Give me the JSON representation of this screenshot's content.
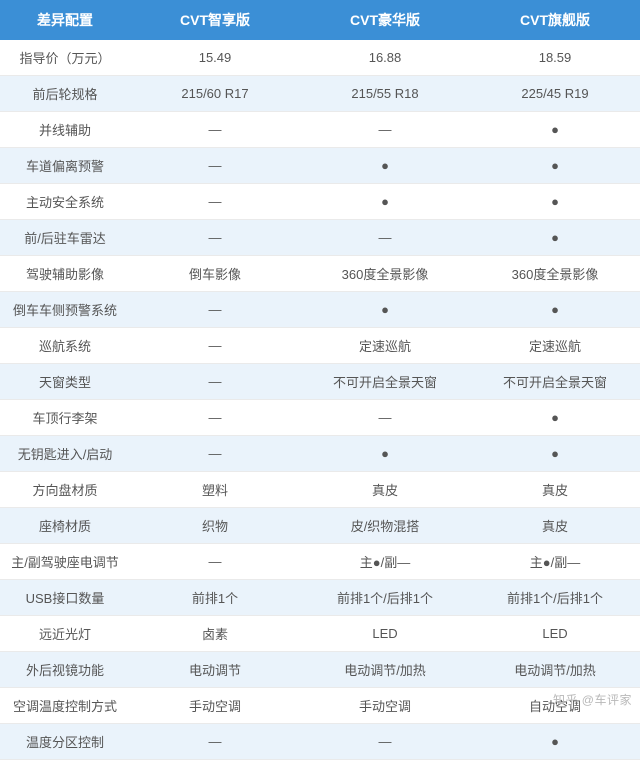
{
  "table": {
    "header_bg": "#3b8fd6",
    "header_text_color": "#ffffff",
    "row_alt_bg": "#eaf3fb",
    "row_bg": "#ffffff",
    "border_color": "#eaeaea",
    "text_color": "#555555",
    "font_size_header": 14,
    "font_size_cell": 13,
    "columns": [
      "差异配置",
      "CVT智享版",
      "CVT豪华版",
      "CVT旗舰版"
    ],
    "rows": [
      [
        "指导价（万元）",
        "15.49",
        "16.88",
        "18.59"
      ],
      [
        "前后轮规格",
        "215/60 R17",
        "215/55 R18",
        "225/45 R19"
      ],
      [
        "并线辅助",
        "—",
        "—",
        "●"
      ],
      [
        "车道偏离预警",
        "—",
        "●",
        "●"
      ],
      [
        "主动安全系统",
        "—",
        "●",
        "●"
      ],
      [
        "前/后驻车雷达",
        "—",
        "—",
        "●"
      ],
      [
        "驾驶辅助影像",
        "倒车影像",
        "360度全景影像",
        "360度全景影像"
      ],
      [
        "倒车车侧预警系统",
        "—",
        "●",
        "●"
      ],
      [
        "巡航系统",
        "—",
        "定速巡航",
        "定速巡航"
      ],
      [
        "天窗类型",
        "—",
        "不可开启全景天窗",
        "不可开启全景天窗"
      ],
      [
        "车顶行李架",
        "—",
        "—",
        "●"
      ],
      [
        "无钥匙进入/启动",
        "—",
        "●",
        "●"
      ],
      [
        "方向盘材质",
        "塑料",
        "真皮",
        "真皮"
      ],
      [
        "座椅材质",
        "织物",
        "皮/织物混搭",
        "真皮"
      ],
      [
        "主/副驾驶座电调节",
        "—",
        "主●/副—",
        "主●/副—"
      ],
      [
        "USB接口数量",
        "前排1个",
        "前排1个/后排1个",
        "前排1个/后排1个"
      ],
      [
        "远近光灯",
        "卤素",
        "LED",
        "LED"
      ],
      [
        "外后视镜功能",
        "电动调节",
        "电动调节/加热",
        "电动调节/加热"
      ],
      [
        "空调温度控制方式",
        "手动空调",
        "手动空调",
        "自动空调"
      ],
      [
        "温度分区控制",
        "—",
        "—",
        "●"
      ]
    ]
  },
  "watermark": "知乎 @车评家"
}
